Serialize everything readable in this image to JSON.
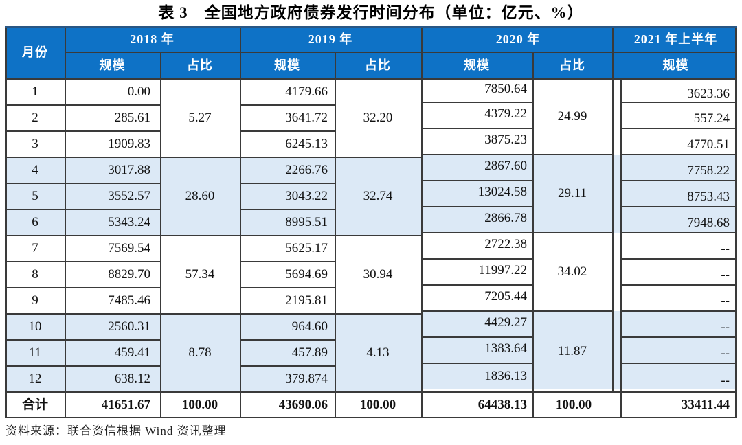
{
  "title": "表 3　全国地方政府债券发行时间分布（单位：亿元、%）",
  "source_note": "资料来源：联合资信根据 Wind 资讯整理",
  "colors": {
    "header_bg": "#0e72c6",
    "quarter_band_bg": "#dce9f6",
    "grid_line": "#3a3a3a",
    "header_text": "#ffffff",
    "top_rule": "#2a5784"
  },
  "header": {
    "month_label": "月份",
    "scale_label": "规模",
    "share_label": "占比",
    "groups": [
      "2018 年",
      "2019 年",
      "2020 年",
      "2021 年上半年"
    ]
  },
  "table": {
    "total_label": "合计",
    "rows": [
      [
        "1",
        "0.00",
        "4179.66",
        "7850.64",
        "3623.36"
      ],
      [
        "2",
        "285.61",
        "3641.72",
        "4379.22",
        "557.24"
      ],
      [
        "3",
        "1909.83",
        "6245.13",
        "3875.23",
        "4770.51"
      ],
      [
        "4",
        "3017.88",
        "2266.76",
        "2867.60",
        "7758.22"
      ],
      [
        "5",
        "3552.57",
        "3043.22",
        "13024.58",
        "8753.43"
      ],
      [
        "6",
        "5343.24",
        "8995.51",
        "2866.78",
        "7948.68"
      ],
      [
        "7",
        "7569.54",
        "5625.17",
        "2722.38",
        "--"
      ],
      [
        "8",
        "8829.70",
        "5694.69",
        "11997.22",
        "--"
      ],
      [
        "9",
        "7485.46",
        "2195.81",
        "7205.44",
        "--"
      ],
      [
        "10",
        "2560.31",
        "964.60",
        "4429.27",
        "--"
      ],
      [
        "11",
        "459.41",
        "457.89",
        "1383.64",
        "--"
      ],
      [
        "12",
        "638.12",
        "379.874",
        "1836.13",
        "--"
      ]
    ],
    "quarter_shares": [
      [
        "5.27",
        "32.20",
        "24.99"
      ],
      [
        "28.60",
        "32.74",
        "29.11"
      ],
      [
        "57.34",
        "30.94",
        "34.02"
      ],
      [
        "8.78",
        "4.13",
        "11.87"
      ]
    ],
    "total_row": [
      "41651.67",
      "100.00",
      "43690.06",
      "100.00",
      "64438.13",
      "100.00",
      "33411.44"
    ]
  }
}
